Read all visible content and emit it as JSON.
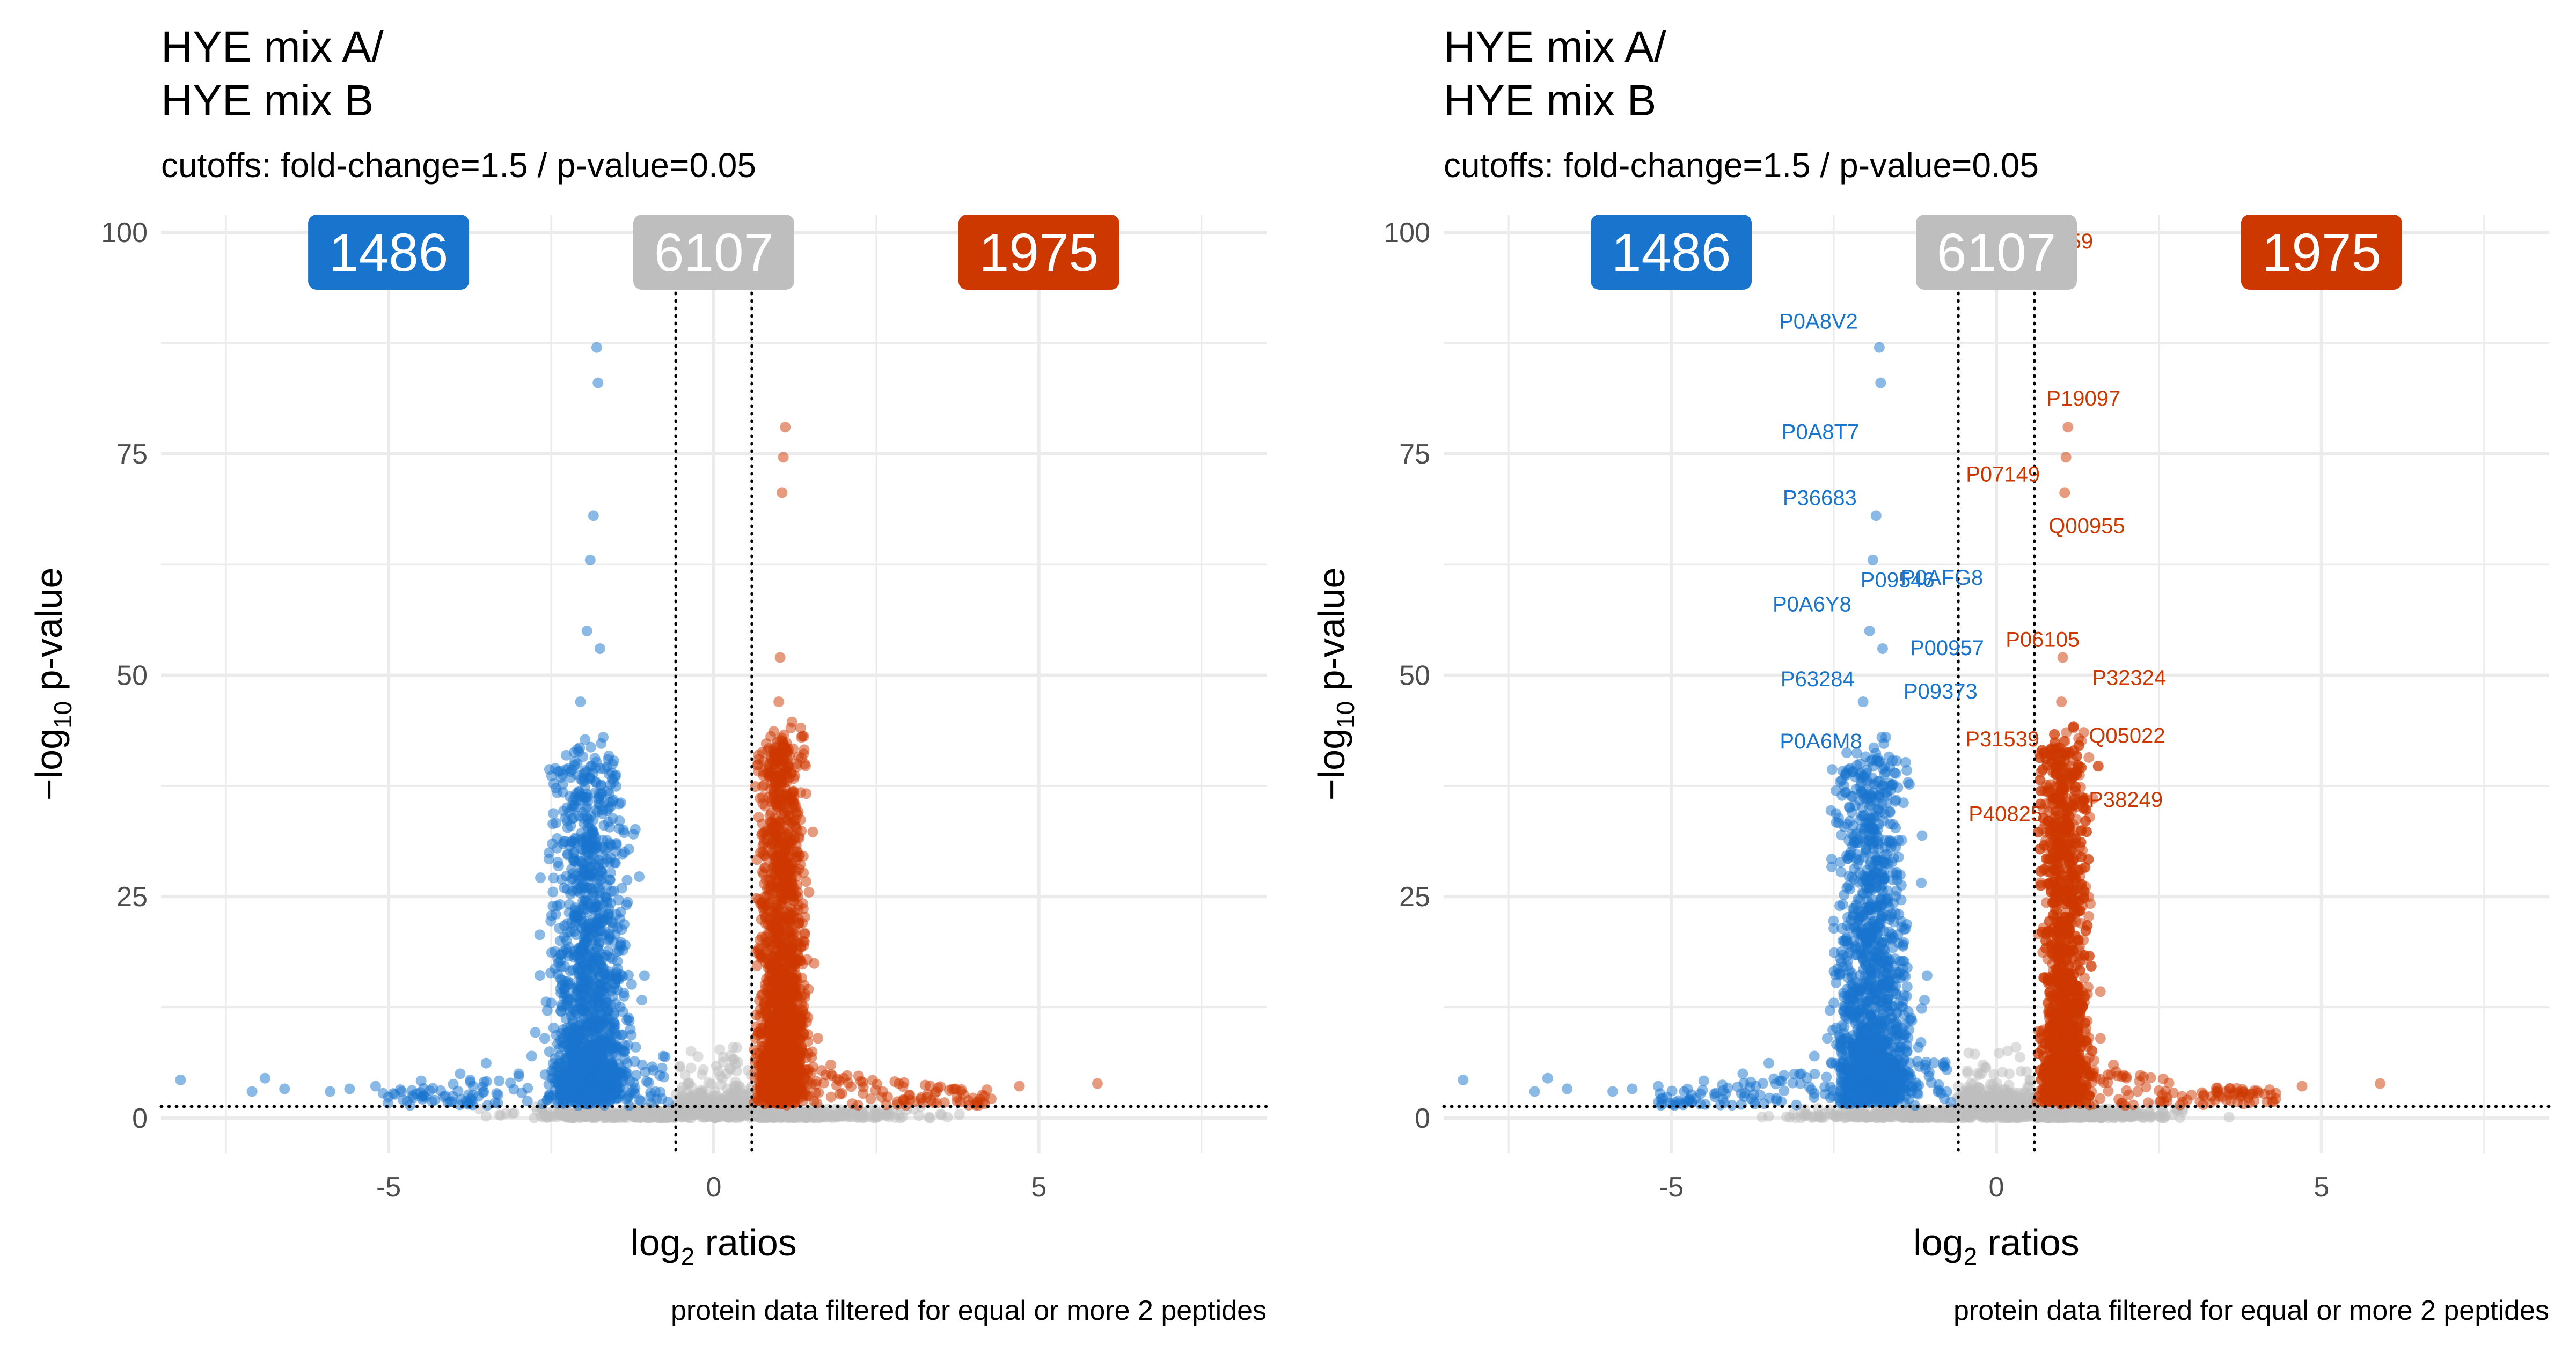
{
  "panels": [
    {
      "title_line1": "HYE mix A/",
      "title_line2": "HYE mix B",
      "subtitle": "cutoffs: fold-change=1.5 / p-value=0.05",
      "caption": "protein data filtered for equal or more 2 peptides",
      "xlabel_main": "log",
      "xlabel_sub": "2",
      "xlabel_rest": " ratios",
      "ylabel_pre": "−log",
      "ylabel_sub": "10",
      "ylabel_rest": " p-value",
      "badges": [
        {
          "text": "1486",
          "color": "#1874cd"
        },
        {
          "text": "6107",
          "color": "#bebebe"
        },
        {
          "text": "1975",
          "color": "#cd3700"
        }
      ]
    },
    {
      "title_line1": "HYE mix A/",
      "title_line2": "HYE mix B",
      "subtitle": "cutoffs: fold-change=1.5 / p-value=0.05",
      "caption": "protein data filtered for equal or more 2 peptides",
      "xlabel_main": "log",
      "xlabel_sub": "2",
      "xlabel_rest": " ratios",
      "ylabel_pre": "−log",
      "ylabel_sub": "10",
      "ylabel_rest": " p-value",
      "badges": [
        {
          "text": "1486",
          "color": "#1874cd"
        },
        {
          "text": "6107",
          "color": "#bebebe"
        },
        {
          "text": "1975",
          "color": "#cd3700"
        }
      ]
    }
  ],
  "colors": {
    "down": "#1874cd",
    "neutral": "#bebebe",
    "up": "#cd3700",
    "grid": "#ebebeb",
    "axis_text": "#4d4d4d"
  },
  "chart_data": [
    {
      "type": "scatter",
      "title": "HYE mix A/ HYE mix B",
      "subtitle": "cutoffs: fold-change=1.5 / p-value=0.05",
      "xlabel": "log2 ratios",
      "ylabel": "-log10 p-value",
      "xlim": [
        -8.5,
        8.5
      ],
      "ylim": [
        -4,
        102
      ],
      "xticks": [
        -5,
        0,
        5
      ],
      "xtick_labels": [
        "-5",
        "0",
        "5"
      ],
      "yticks": [
        0,
        25,
        50,
        75,
        100
      ],
      "ytick_labels": [
        "0",
        "25",
        "50",
        "75",
        "100"
      ],
      "cutoff_lines": {
        "x": [
          -0.585,
          0.585
        ],
        "y": 1.301
      },
      "grid": true,
      "counts": {
        "down": 1486,
        "neutral": 6107,
        "up": 1975
      },
      "series": [
        {
          "group": "down",
          "points": [
            [
              -8.2,
              4.3
            ],
            [
              -7.1,
              3.0
            ],
            [
              -6.9,
              4.5
            ],
            [
              -6.6,
              3.3
            ],
            [
              -5.9,
              3.0
            ],
            [
              -5.6,
              3.3
            ],
            [
              -5.2,
              3.6
            ],
            [
              -4.8,
              3.0
            ],
            [
              -4.5,
              4.2
            ],
            [
              -4.2,
              3.1
            ],
            [
              -3.9,
              5.0
            ],
            [
              -3.7,
              3.6
            ],
            [
              -3.5,
              6.2
            ],
            [
              -3.3,
              4.2
            ],
            [
              -3.0,
              5.0
            ],
            [
              -2.8,
              7.0
            ],
            [
              -2.6,
              9.0
            ],
            [
              -2.5,
              13.0
            ],
            [
              -2.4,
              18.0
            ],
            [
              -2.3,
              26.0
            ],
            [
              -2.2,
              33.0
            ],
            [
              -2.1,
              40.0
            ],
            [
              -2.05,
              47.0
            ],
            [
              -1.95,
              55.0
            ],
            [
              -1.9,
              63.0
            ],
            [
              -1.85,
              68.0
            ],
            [
              -1.8,
              87.0
            ],
            [
              -1.78,
              83.0
            ],
            [
              -1.75,
              53.0
            ],
            [
              -1.7,
              43.0
            ],
            [
              -1.6,
              31.0
            ],
            [
              -1.5,
              23.0
            ],
            [
              -1.4,
              16.0
            ],
            [
              -1.3,
              11.0
            ],
            [
              -1.2,
              8.0
            ],
            [
              -1.1,
              6.0
            ],
            [
              -1.0,
              4.0
            ],
            [
              -0.9,
              3.0
            ],
            [
              -0.8,
              2.2
            ],
            [
              -0.7,
              1.8
            ]
          ]
        },
        {
          "group": "up",
          "points": [
            [
              0.7,
              2.0
            ],
            [
              0.75,
              5.0
            ],
            [
              0.8,
              12.0
            ],
            [
              0.85,
              20.0
            ],
            [
              0.9,
              30.0
            ],
            [
              0.95,
              40.0
            ],
            [
              1.0,
              47.0
            ],
            [
              1.02,
              52.0
            ],
            [
              1.05,
              70.6
            ],
            [
              1.07,
              74.6
            ],
            [
              1.1,
              78.0
            ],
            [
              1.2,
              36.0
            ],
            [
              1.3,
              22.0
            ],
            [
              1.4,
              14.0
            ],
            [
              1.6,
              9.0
            ],
            [
              1.8,
              6.0
            ],
            [
              2.0,
              4.5
            ],
            [
              2.3,
              3.5
            ],
            [
              2.6,
              3.0
            ],
            [
              3.0,
              2.6
            ],
            [
              3.4,
              2.8
            ],
            [
              3.8,
              3.0
            ],
            [
              4.2,
              3.2
            ],
            [
              4.7,
              3.6
            ],
            [
              5.9,
              3.9
            ]
          ]
        },
        {
          "group": "neutral",
          "points": [
            [
              -0.5,
              3.0
            ],
            [
              -0.4,
              1.5
            ],
            [
              -0.3,
              0.6
            ],
            [
              -0.2,
              2.0
            ],
            [
              -0.1,
              0.4
            ],
            [
              0.0,
              0.8
            ],
            [
              0.1,
              1.2
            ],
            [
              0.2,
              5.0
            ],
            [
              0.3,
              8.0
            ],
            [
              0.4,
              1.2
            ],
            [
              0.5,
              2.5
            ],
            [
              1.5,
              0.3
            ],
            [
              2.5,
              0.2
            ],
            [
              -1.5,
              0.4
            ],
            [
              -2.5,
              0.3
            ],
            [
              -3.5,
              0.2
            ]
          ]
        }
      ]
    },
    {
      "type": "scatter",
      "title": "HYE mix A/ HYE mix B",
      "subtitle": "cutoffs: fold-change=1.5 / p-value=0.05",
      "xlabel": "log2 ratios",
      "ylabel": "-log10 p-value",
      "xlim": [
        -8.5,
        8.5
      ],
      "ylim": [
        -4,
        102
      ],
      "xticks": [
        -5,
        0,
        5
      ],
      "xtick_labels": [
        "-5",
        "0",
        "5"
      ],
      "yticks": [
        0,
        25,
        50,
        75,
        100
      ],
      "ytick_labels": [
        "0",
        "25",
        "50",
        "75",
        "100"
      ],
      "cutoff_lines": {
        "x": [
          -0.585,
          0.585
        ],
        "y": 1.301
      },
      "grid": true,
      "counts": {
        "down": 1486,
        "neutral": 6107,
        "up": 1975
      },
      "labels": [
        {
          "text": "P0A8V2",
          "x": -1.8,
          "y": 87.0,
          "group": "down"
        },
        {
          "text": "P0A8T7",
          "x": -1.78,
          "y": 83.0,
          "group": "down"
        },
        {
          "text": "P36683",
          "x": -1.9,
          "y": 68.0,
          "group": "down"
        },
        {
          "text": "P09546",
          "x": -1.85,
          "y": 66.0,
          "group": "down"
        },
        {
          "text": "P0AFG8",
          "x": -1.8,
          "y": 59.0,
          "group": "down"
        },
        {
          "text": "P0A6Y8",
          "x": -1.9,
          "y": 56.0,
          "group": "down"
        },
        {
          "text": "P00957",
          "x": -1.7,
          "y": 55.0,
          "group": "down"
        },
        {
          "text": "P63284",
          "x": -1.85,
          "y": 53.0,
          "group": "down"
        },
        {
          "text": "P09373",
          "x": -1.8,
          "y": 51.0,
          "group": "down"
        },
        {
          "text": "P0A6M8",
          "x": -1.9,
          "y": 49.0,
          "group": "down"
        },
        {
          "text": "P07259",
          "x": 1.0,
          "y": 100.0,
          "group": "up"
        },
        {
          "text": "P19097",
          "x": 1.1,
          "y": 78.0,
          "group": "up"
        },
        {
          "text": "P07149",
          "x": 1.0,
          "y": 74.6,
          "group": "up"
        },
        {
          "text": "Q00955",
          "x": 1.05,
          "y": 70.6,
          "group": "up"
        },
        {
          "text": "P06105",
          "x": 1.0,
          "y": 52.0,
          "group": "up"
        },
        {
          "text": "P32324",
          "x": 1.1,
          "y": 48.0,
          "group": "up"
        },
        {
          "text": "Q05022",
          "x": 1.05,
          "y": 46.0,
          "group": "up"
        },
        {
          "text": "P31539",
          "x": 0.95,
          "y": 45.0,
          "group": "up"
        },
        {
          "text": "P40825",
          "x": 1.0,
          "y": 42.0,
          "group": "up"
        },
        {
          "text": "P38249",
          "x": 1.05,
          "y": 43.0,
          "group": "up"
        }
      ]
    }
  ]
}
